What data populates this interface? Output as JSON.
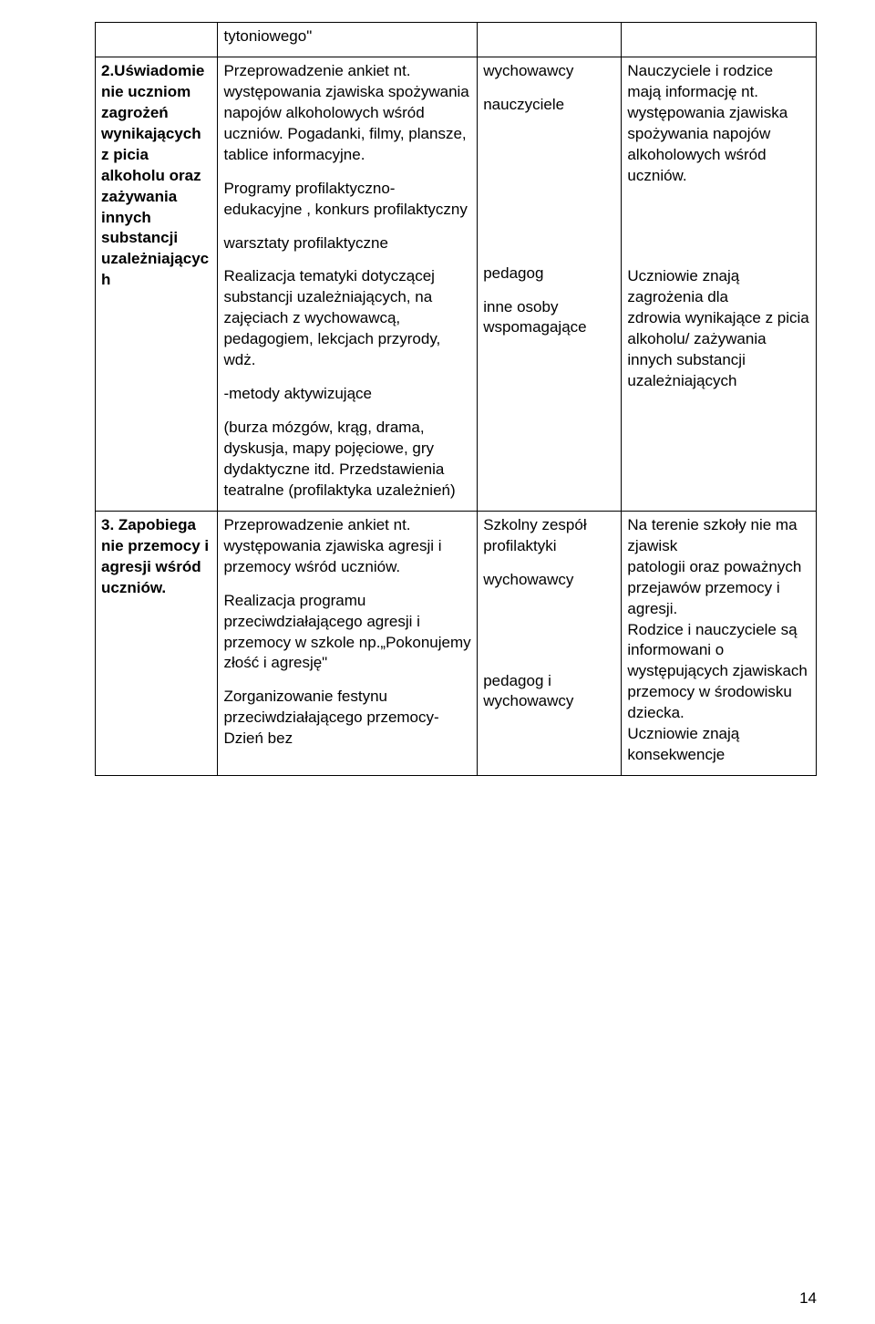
{
  "page_number": "14",
  "colors": {
    "text": "#000000",
    "background": "#ffffff",
    "border": "#000000"
  },
  "rows": [
    {
      "c1": "",
      "c2": "tytoniowego\"",
      "c3": "",
      "c4": ""
    },
    {
      "c1_bold": "2.Uświadomie\nnie uczniom zagrożeń wynikających z picia alkoholu oraz zażywania innych substancji uzależniającyc\nh",
      "c2_parts": [
        "Przeprowadzenie ankiet nt. występowania zjawiska spożywania napojów alkoholowych wśród uczniów. Pogadanki, filmy, plansze, tablice informacyjne.",
        "Programy profilaktyczno-edukacyjne , konkurs profilaktyczny",
        "warsztaty profilaktyczne",
        "Realizacja tematyki dotyczącej substancji uzależniających, na zajęciach z wychowawcą, pedagogiem, lekcjach przyrody, wdż.",
        "-metody aktywizujące",
        "(burza mózgów, krąg, drama, dyskusja, mapy pojęciowe, gry dydaktyczne itd. Przedstawienia teatralne (profilaktyka uzależnień)"
      ],
      "c3_parts": [
        "wychowawcy",
        "nauczyciele",
        "",
        "",
        "pedagog",
        "inne osoby wspomagające"
      ],
      "c4_parts": [
        "Nauczyciele i rodzice mają informację nt. występowania zjawiska spożywania napojów alkoholowych wśród uczniów.",
        "",
        "",
        "Uczniowie znają zagrożenia dla\n zdrowia wynikające z picia alkoholu/ zażywania innych substancji uzależniających"
      ]
    },
    {
      "c1_bold": "3. Zapobiega\nnie przemocy i agresji wśród uczniów.",
      "c2_parts": [
        "Przeprowadzenie ankiet nt. występowania zjawiska agresji i przemocy wśród uczniów.",
        "Realizacja programu przeciwdziałającego agresji i przemocy w szkole np.„Pokonujemy złość i agresję\"",
        "Zorganizowanie festynu przeciwdziałającego przemocy- Dzień bez"
      ],
      "c3_parts": [
        "Szkolny zespół profilaktyki",
        "wychowawcy",
        "",
        "",
        "pedagog i wychowawcy"
      ],
      "c4_parts": [
        "Na terenie szkoły nie ma zjawisk\n patologii oraz poważnych przejawów przemocy i agresji.\n Rodzice i nauczyciele są informowani o występujących zjawiskach\n przemocy w środowisku dziecka.\n Uczniowie znają konsekwencje"
      ]
    }
  ]
}
